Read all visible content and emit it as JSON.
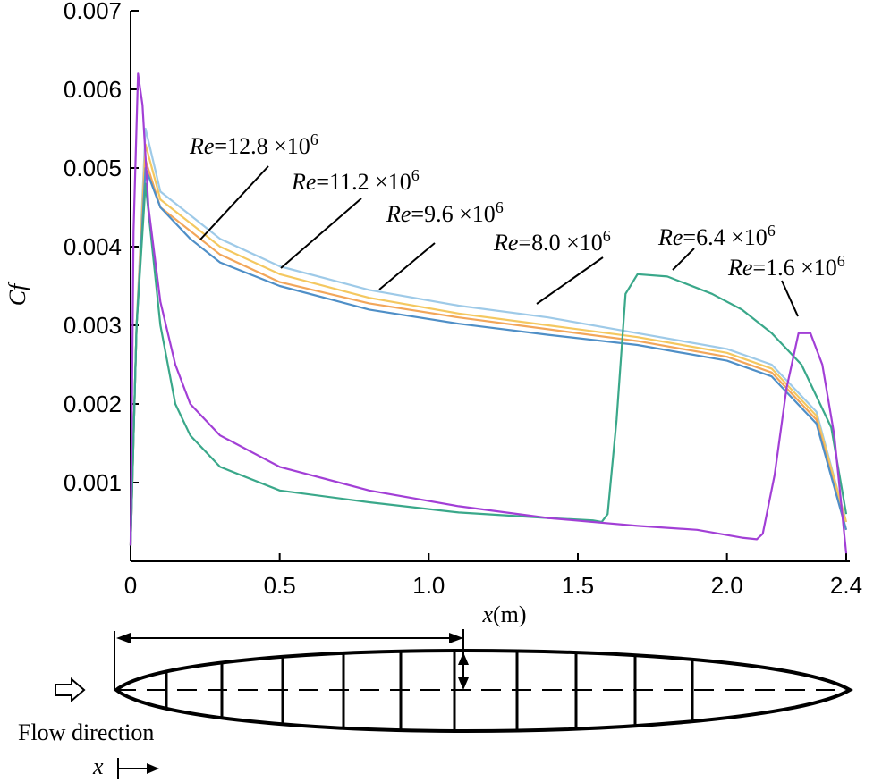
{
  "chart_data": {
    "type": "line",
    "title": "",
    "xlabel_var": "x",
    "xlabel_unit": "(m)",
    "ylabel": "Cf",
    "xlim": [
      0,
      2.4
    ],
    "ylim": [
      0,
      0.007
    ],
    "xticks": [
      {
        "value": 0,
        "label": "0"
      },
      {
        "value": 0.5,
        "label": "0.5"
      },
      {
        "value": 1.0,
        "label": "1.0"
      },
      {
        "value": 1.5,
        "label": "1.5"
      },
      {
        "value": 2.0,
        "label": "2.0"
      },
      {
        "value": 2.4,
        "label": "2.4"
      }
    ],
    "yticks": [
      {
        "value": 0.001,
        "label": "0.001"
      },
      {
        "value": 0.002,
        "label": "0.002"
      },
      {
        "value": 0.003,
        "label": "0.003"
      },
      {
        "value": 0.004,
        "label": "0.004"
      },
      {
        "value": 0.005,
        "label": "0.005"
      },
      {
        "value": 0.006,
        "label": "0.006"
      },
      {
        "value": 0.007,
        "label": "0.007"
      }
    ],
    "grid": false,
    "series": [
      {
        "name": "Re=12.8 ×10^6",
        "re_prefix": "Re",
        "re_value": "=12.8 ×10",
        "re_exp": "6",
        "color": "#9ecae8",
        "x": [
          0.0,
          0.02,
          0.05,
          0.1,
          0.2,
          0.3,
          0.5,
          0.8,
          1.1,
          1.4,
          1.7,
          2.0,
          2.15,
          2.3,
          2.4
        ],
        "y": [
          0.0002,
          0.003,
          0.0055,
          0.0047,
          0.0044,
          0.0041,
          0.00375,
          0.00345,
          0.00325,
          0.0031,
          0.0029,
          0.0027,
          0.0025,
          0.0019,
          0.0005
        ]
      },
      {
        "name": "Re=11.2 ×10^6",
        "re_prefix": "Re",
        "re_value": "=11.2 ×10",
        "re_exp": "6",
        "color": "#f4c860",
        "x": [
          0.0,
          0.02,
          0.05,
          0.1,
          0.2,
          0.3,
          0.5,
          0.8,
          1.1,
          1.4,
          1.7,
          2.0,
          2.15,
          2.3,
          2.4
        ],
        "y": [
          0.0002,
          0.003,
          0.0053,
          0.0046,
          0.0043,
          0.004,
          0.00365,
          0.00335,
          0.00315,
          0.003,
          0.00285,
          0.00265,
          0.00245,
          0.00185,
          0.0005
        ]
      },
      {
        "name": "Re=9.6 ×10^6",
        "re_prefix": "Re",
        "re_value": "=9.6 ×10",
        "re_exp": "6",
        "color": "#f2a65a",
        "x": [
          0.0,
          0.02,
          0.05,
          0.1,
          0.2,
          0.3,
          0.5,
          0.8,
          1.1,
          1.4,
          1.7,
          2.0,
          2.15,
          2.3,
          2.4
        ],
        "y": [
          0.0002,
          0.003,
          0.0051,
          0.0045,
          0.0042,
          0.0039,
          0.00355,
          0.00328,
          0.0031,
          0.00295,
          0.0028,
          0.0026,
          0.0024,
          0.0018,
          0.0004
        ]
      },
      {
        "name": "Re=8.0 ×10^6",
        "re_prefix": "Re",
        "re_value": "=8.0 ×10",
        "re_exp": "6",
        "color": "#4f8fc7",
        "x": [
          0.0,
          0.02,
          0.05,
          0.1,
          0.2,
          0.3,
          0.5,
          0.8,
          1.1,
          1.4,
          1.7,
          2.0,
          2.15,
          2.3,
          2.4
        ],
        "y": [
          0.0002,
          0.003,
          0.005,
          0.0045,
          0.0041,
          0.0038,
          0.0035,
          0.0032,
          0.00302,
          0.00288,
          0.00275,
          0.00255,
          0.00235,
          0.00175,
          0.0004
        ]
      },
      {
        "name": "Re=6.4 ×10^6",
        "re_prefix": "Re",
        "re_value": "=6.4 ×10",
        "re_exp": "6",
        "color": "#3aa88a",
        "x": [
          0.0,
          0.02,
          0.05,
          0.1,
          0.15,
          0.2,
          0.3,
          0.5,
          0.8,
          1.1,
          1.4,
          1.55,
          1.58,
          1.6,
          1.63,
          1.66,
          1.7,
          1.8,
          1.95,
          2.05,
          2.15,
          2.25,
          2.35,
          2.4
        ],
        "y": [
          0.0002,
          0.003,
          0.0048,
          0.003,
          0.002,
          0.0016,
          0.0012,
          0.0009,
          0.00075,
          0.00062,
          0.00055,
          0.00052,
          0.0005,
          0.0006,
          0.0018,
          0.0034,
          0.00365,
          0.00362,
          0.0034,
          0.0032,
          0.0029,
          0.0025,
          0.0017,
          0.0006
        ]
      },
      {
        "name": "Re=1.6 ×10^6",
        "re_prefix": "Re",
        "re_value": "=1.6 ×10",
        "re_exp": "6",
        "color": "#a23fd6",
        "x": [
          0.0,
          0.01,
          0.025,
          0.04,
          0.06,
          0.1,
          0.15,
          0.2,
          0.3,
          0.5,
          0.8,
          1.1,
          1.4,
          1.7,
          1.9,
          2.05,
          2.1,
          2.12,
          2.16,
          2.2,
          2.24,
          2.28,
          2.32,
          2.36,
          2.4
        ],
        "y": [
          0.0002,
          0.0042,
          0.0062,
          0.0058,
          0.0045,
          0.0033,
          0.0025,
          0.002,
          0.0016,
          0.0012,
          0.0009,
          0.0007,
          0.00055,
          0.00045,
          0.0004,
          0.0003,
          0.00028,
          0.00035,
          0.0011,
          0.0022,
          0.0029,
          0.0029,
          0.0025,
          0.0016,
          0.0001
        ]
      }
    ]
  },
  "diagram": {
    "flow_label": "Flow direction",
    "axis_label": "x"
  }
}
